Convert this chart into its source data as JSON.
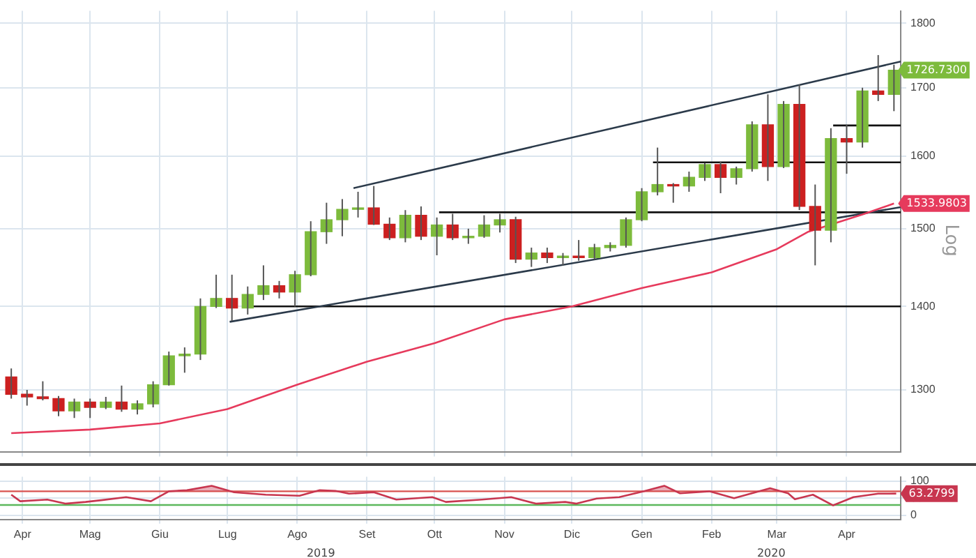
{
  "chart_data": [
    {
      "type": "candlestick",
      "log": true,
      "grid": true,
      "tick_labels": "y",
      "marker": "none",
      "xlim": [
        "2019-03-22",
        "2020-04-25"
      ],
      "ylim": [
        1230,
        1820
      ],
      "yticks": [
        1300,
        1400,
        1500,
        1600,
        1700,
        1800
      ],
      "xticks": [
        {
          "value": "2019-04-01",
          "label": null
        },
        {
          "value": "2019-05-01",
          "label": null
        },
        {
          "value": "2019-06-01",
          "label": null
        },
        {
          "value": "2019-07-01",
          "label": null
        },
        {
          "value": "2019-08-01",
          "label": null
        },
        {
          "value": "2019-09-01",
          "label": null
        },
        {
          "value": "2019-10-01",
          "label": null
        },
        {
          "value": "2019-11-01",
          "label": null
        },
        {
          "value": "2019-12-01",
          "label": null
        },
        {
          "value": "2020-01-01",
          "label": null
        },
        {
          "value": "2020-02-01",
          "label": null
        },
        {
          "value": "2020-03-01",
          "label": null
        },
        {
          "value": "2020-04-01",
          "label": null
        }
      ],
      "x": [
        "2019-03-27",
        "2019-04-03",
        "2019-04-10",
        "2019-04-17",
        "2019-04-24",
        "2019-05-01",
        "2019-05-08",
        "2019-05-15",
        "2019-05-22",
        "2019-05-29",
        "2019-06-05",
        "2019-06-12",
        "2019-06-19",
        "2019-06-26",
        "2019-07-03",
        "2019-07-10",
        "2019-07-17",
        "2019-07-24",
        "2019-07-31",
        "2019-08-07",
        "2019-08-14",
        "2019-08-21",
        "2019-08-28",
        "2019-09-04",
        "2019-09-11",
        "2019-09-18",
        "2019-09-25",
        "2019-10-02",
        "2019-10-09",
        "2019-10-16",
        "2019-10-23",
        "2019-10-30",
        "2019-11-06",
        "2019-11-13",
        "2019-11-20",
        "2019-11-27",
        "2019-12-04",
        "2019-12-11",
        "2019-12-18",
        "2019-12-25",
        "2020-01-01",
        "2020-01-08",
        "2020-01-15",
        "2020-01-22",
        "2020-01-29",
        "2020-02-05",
        "2020-02-12",
        "2020-02-19",
        "2020-02-26",
        "2020-03-04",
        "2020-03-11",
        "2020-03-18",
        "2020-03-25",
        "2020-04-01",
        "2020-04-08",
        "2020-04-15",
        "2020-04-22"
      ],
      "ohlc": [
        [
          1315,
          1325,
          1290,
          1295
        ],
        [
          1295,
          1300,
          1282,
          1292
        ],
        [
          1292,
          1310,
          1288,
          1290
        ],
        [
          1290,
          1293,
          1270,
          1276
        ],
        [
          1276,
          1290,
          1268,
          1286
        ],
        [
          1286,
          1290,
          1268,
          1280
        ],
        [
          1280,
          1292,
          1278,
          1286
        ],
        [
          1286,
          1305,
          1275,
          1278
        ],
        [
          1278,
          1288,
          1272,
          1284
        ],
        [
          1284,
          1310,
          1280,
          1306
        ],
        [
          1306,
          1345,
          1305,
          1340
        ],
        [
          1340,
          1350,
          1320,
          1342
        ],
        [
          1342,
          1410,
          1335,
          1400
        ],
        [
          1400,
          1440,
          1398,
          1410
        ],
        [
          1410,
          1440,
          1382,
          1398
        ],
        [
          1398,
          1425,
          1390,
          1415
        ],
        [
          1415,
          1452,
          1408,
          1426
        ],
        [
          1426,
          1432,
          1410,
          1418
        ],
        [
          1418,
          1445,
          1400,
          1440
        ],
        [
          1440,
          1510,
          1438,
          1496
        ],
        [
          1496,
          1535,
          1480,
          1512
        ],
        [
          1512,
          1540,
          1490,
          1526
        ],
        [
          1526,
          1550,
          1515,
          1528
        ],
        [
          1528,
          1558,
          1505,
          1506
        ],
        [
          1506,
          1515,
          1485,
          1488
        ],
        [
          1488,
          1525,
          1482,
          1518
        ],
        [
          1518,
          1530,
          1485,
          1490
        ],
        [
          1490,
          1515,
          1465,
          1505
        ],
        [
          1505,
          1520,
          1485,
          1488
        ],
        [
          1488,
          1500,
          1480,
          1490
        ],
        [
          1490,
          1518,
          1488,
          1505
        ],
        [
          1505,
          1520,
          1495,
          1512
        ],
        [
          1512,
          1516,
          1455,
          1460
        ],
        [
          1460,
          1475,
          1450,
          1468
        ],
        [
          1468,
          1475,
          1455,
          1462
        ],
        [
          1462,
          1468,
          1452,
          1464
        ],
        [
          1464,
          1485,
          1458,
          1462
        ],
        [
          1462,
          1480,
          1460,
          1475
        ],
        [
          1475,
          1482,
          1470,
          1478
        ],
        [
          1478,
          1515,
          1475,
          1512
        ],
        [
          1512,
          1555,
          1510,
          1550
        ],
        [
          1550,
          1612,
          1545,
          1560
        ],
        [
          1560,
          1562,
          1535,
          1558
        ],
        [
          1558,
          1578,
          1550,
          1570
        ],
        [
          1570,
          1590,
          1565,
          1588
        ],
        [
          1588,
          1592,
          1548,
          1570
        ],
        [
          1570,
          1585,
          1560,
          1582
        ],
        [
          1582,
          1650,
          1578,
          1645
        ],
        [
          1645,
          1690,
          1565,
          1585
        ],
        [
          1585,
          1680,
          1583,
          1675
        ],
        [
          1675,
          1705,
          1525,
          1530
        ],
        [
          1530,
          1560,
          1452,
          1498
        ],
        [
          1498,
          1640,
          1482,
          1625
        ],
        [
          1625,
          1645,
          1575,
          1620
        ],
        [
          1620,
          1700,
          1612,
          1695
        ],
        [
          1695,
          1750,
          1680,
          1690
        ],
        [
          1690,
          1735,
          1665,
          1726.73
        ]
      ],
      "colors": [
        "#cc2020",
        "#cc2020",
        "#cc2020",
        "#cc2020",
        "#7dbb3c",
        "#cc2020",
        "#7dbb3c",
        "#cc2020",
        "#7dbb3c",
        "#7dbb3c",
        "#7dbb3c",
        "#7dbb3c",
        "#7dbb3c",
        "#7dbb3c",
        "#cc2020",
        "#7dbb3c",
        "#7dbb3c",
        "#cc2020",
        "#7dbb3c",
        "#7dbb3c",
        "#7dbb3c",
        "#7dbb3c",
        "#7dbb3c",
        "#cc2020",
        "#cc2020",
        "#7dbb3c",
        "#cc2020",
        "#7dbb3c",
        "#cc2020",
        "#7dbb3c",
        "#7dbb3c",
        "#7dbb3c",
        "#cc2020",
        "#7dbb3c",
        "#cc2020",
        "#7dbb3c",
        "#cc2020",
        "#7dbb3c",
        "#7dbb3c",
        "#7dbb3c",
        "#7dbb3c",
        "#7dbb3c",
        "#cc2020",
        "#7dbb3c",
        "#7dbb3c",
        "#cc2020",
        "#7dbb3c",
        "#7dbb3c",
        "#cc2020",
        "#7dbb3c",
        "#cc2020",
        "#cc2020",
        "#7dbb3c",
        "#cc2020",
        "#7dbb3c",
        "#cc2020",
        "#7dbb3c"
      ],
      "series": [
        {
          "type": "line",
          "color": "#e63a5c",
          "x": [
            "2019-03-27",
            "2019-05-01",
            "2019-06-01",
            "2019-07-01",
            "2019-08-01",
            "2019-09-01",
            "2019-10-01",
            "2019-11-01",
            "2019-12-01",
            "2020-01-01",
            "2020-02-01",
            "2020-03-01",
            "2020-03-15",
            "2020-04-08",
            "2020-04-22"
          ],
          "values": [
            1251,
            1255,
            1262,
            1278,
            1306,
            1333,
            1355,
            1384,
            1400,
            1423,
            1443,
            1473,
            1496,
            1519,
            1533.98
          ]
        },
        {
          "type": "line",
          "color": "#2b3a4a",
          "x": [
            "2019-08-26",
            "2020-04-25"
          ],
          "values": [
            1555,
            1740
          ]
        },
        {
          "type": "line",
          "color": "#2b3a4a",
          "x": [
            "2019-07-02",
            "2020-04-25"
          ],
          "values": [
            1381,
            1529
          ]
        },
        {
          "type": "line",
          "color": "#111111",
          "x": [
            "2019-07-09",
            "2020-04-25"
          ],
          "values": [
            1400,
            1400
          ]
        },
        {
          "type": "line",
          "color": "#111111",
          "x": [
            "2019-10-03",
            "2020-04-25"
          ],
          "values": [
            1522,
            1522
          ]
        },
        {
          "type": "line",
          "color": "#111111",
          "x": [
            "2020-01-06",
            "2020-04-25"
          ],
          "values": [
            1591,
            1591
          ]
        },
        {
          "type": "line",
          "color": "#111111",
          "x": [
            "2020-03-26",
            "2020-04-25"
          ],
          "values": [
            1644,
            1644
          ]
        }
      ],
      "annotations": [
        "Log",
        {
          "text": "1726.7300",
          "x": "2020-04-22",
          "y": 1726.73
        },
        {
          "text": "1533.9803",
          "x": "2020-04-22",
          "y": 1533.98
        }
      ]
    },
    {
      "type": "line",
      "grid": true,
      "marker": "none",
      "xlim": [
        "2019-03-22",
        "2020-04-25"
      ],
      "ylim": [
        -12,
        112
      ],
      "yticks": [
        0,
        50,
        100
      ],
      "xticks": [
        {
          "value": "2019-04-01",
          "label": "Apr"
        },
        {
          "value": "2019-05-01",
          "label": "Mag"
        },
        {
          "value": "2019-06-01",
          "label": "Giu"
        },
        {
          "value": "2019-07-01",
          "label": "Lug"
        },
        {
          "value": "2019-08-01",
          "label": "Ago"
        },
        {
          "value": "2019-09-01",
          "label": "Set"
        },
        {
          "value": "2019-10-01",
          "label": "Ott"
        },
        {
          "value": "2019-11-01",
          "label": "Nov"
        },
        {
          "value": "2019-12-01",
          "label": "Dic"
        },
        {
          "value": "2020-01-01",
          "label": "Gen"
        },
        {
          "value": "2020-02-01",
          "label": "Feb"
        },
        {
          "value": "2020-03-01",
          "label": "Mar"
        },
        {
          "value": "2020-04-01",
          "label": "Apr"
        }
      ],
      "series": [
        {
          "color": "#c8364f",
          "x": [
            "2019-03-27",
            "2019-03-31",
            "2019-04-12",
            "2019-04-20",
            "2019-04-29",
            "2019-05-06",
            "2019-05-17",
            "2019-05-28",
            "2019-06-05",
            "2019-06-13",
            "2019-06-24",
            "2019-07-04",
            "2019-07-18",
            "2019-08-02",
            "2019-08-11",
            "2019-08-18",
            "2019-08-24",
            "2019-09-04",
            "2019-09-14",
            "2019-09-30",
            "2019-10-06",
            "2019-10-22",
            "2019-11-04",
            "2019-11-15",
            "2019-11-28",
            "2019-12-03",
            "2019-12-12",
            "2019-12-22",
            "2020-01-02",
            "2020-01-11",
            "2020-01-18",
            "2020-01-31",
            "2020-02-11",
            "2020-02-27",
            "2020-03-06",
            "2020-03-09",
            "2020-03-17",
            "2020-03-26",
            "2020-04-04",
            "2020-04-15",
            "2020-04-20",
            "2020-04-23"
          ],
          "values": [
            60,
            41,
            46,
            34,
            39,
            44,
            53,
            41,
            70,
            73,
            86,
            67,
            60,
            57,
            73,
            71,
            63,
            67,
            46,
            53,
            39,
            46,
            53,
            34,
            39,
            34,
            49,
            53,
            70,
            86,
            64,
            70,
            50,
            79,
            64,
            47,
            60,
            29,
            53,
            63,
            63,
            63.3
          ]
        }
      ],
      "ref_lines": [
        {
          "axis": "y",
          "value": 70,
          "color": "#d9534f"
        },
        {
          "axis": "y",
          "value": 30,
          "color": "#5cb85c"
        }
      ],
      "annotations": [
        {
          "text": "63.2799",
          "x": "2020-04-23",
          "y": 63.3
        },
        "2019",
        "2020"
      ]
    }
  ]
}
